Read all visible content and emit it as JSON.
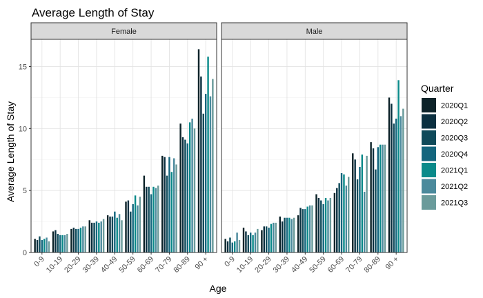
{
  "chart_data": {
    "type": "bar",
    "title": "Average Length of Stay",
    "xlabel": "Age",
    "ylabel": "Average Length of Stay",
    "ylim": [
      0,
      17.2
    ],
    "yticks": [
      0,
      5,
      10,
      15
    ],
    "grid": true,
    "legend_title": "Quarter",
    "legend_position": "right",
    "categories": [
      "0-9",
      "10-19",
      "20-29",
      "30-39",
      "40-49",
      "50-59",
      "60-69",
      "70-79",
      "80-89",
      "90 +"
    ],
    "series_names": [
      "2020Q1",
      "2020Q2",
      "2020Q3",
      "2020Q4",
      "2021Q1",
      "2021Q2",
      "2021Q3"
    ],
    "colors": [
      "#0d2329",
      "#0b3040",
      "#0f4a5a",
      "#14667e",
      "#0a8a8a",
      "#4b8a9c",
      "#6a9b9b"
    ],
    "facets": [
      {
        "label": "Female",
        "values": [
          [
            1.1,
            1.0,
            1.3,
            1.0,
            1.1,
            1.2,
            0.9
          ],
          [
            1.7,
            1.8,
            1.5,
            1.4,
            1.4,
            1.4,
            1.5
          ],
          [
            1.9,
            2.0,
            1.9,
            1.9,
            2.0,
            2.1,
            2.1
          ],
          [
            2.6,
            2.4,
            2.4,
            2.5,
            2.4,
            2.5,
            2.7
          ],
          [
            3.0,
            2.9,
            2.9,
            3.3,
            2.8,
            3.1,
            2.6
          ],
          [
            4.1,
            4.2,
            3.3,
            3.9,
            4.6,
            3.8,
            4.5
          ],
          [
            6.2,
            5.3,
            5.3,
            4.7,
            5.3,
            5.2,
            5.4
          ],
          [
            7.8,
            7.7,
            6.2,
            7.7,
            6.5,
            7.6,
            7.1
          ],
          [
            10.4,
            9.3,
            9.1,
            8.8,
            10.5,
            10.8,
            10.0
          ],
          [
            16.4,
            14.2,
            11.2,
            12.8,
            15.8,
            12.6,
            14.0
          ]
        ]
      },
      {
        "label": "Male",
        "values": [
          [
            1.1,
            0.9,
            1.2,
            0.8,
            0.9,
            1.6,
            1.0
          ],
          [
            2.0,
            1.7,
            1.4,
            1.6,
            1.4,
            1.6,
            1.9
          ],
          [
            1.8,
            2.1,
            2.1,
            2.0,
            2.3,
            2.4,
            2.4
          ],
          [
            2.9,
            2.5,
            2.8,
            2.8,
            2.8,
            2.7,
            2.8
          ],
          [
            3.0,
            3.6,
            3.5,
            3.5,
            3.7,
            3.8,
            3.8
          ],
          [
            4.7,
            4.4,
            4.2,
            3.9,
            4.4,
            4.2,
            4.4
          ],
          [
            4.8,
            5.2,
            5.6,
            6.4,
            6.3,
            5.4,
            6.1
          ],
          [
            8.0,
            7.5,
            5.9,
            6.9,
            7.9,
            4.9,
            7.8
          ],
          [
            8.9,
            8.4,
            6.7,
            8.5,
            8.7,
            8.7,
            8.7
          ],
          [
            12.5,
            12.0,
            10.4,
            10.8,
            13.9,
            11.0,
            11.6
          ]
        ]
      }
    ]
  }
}
